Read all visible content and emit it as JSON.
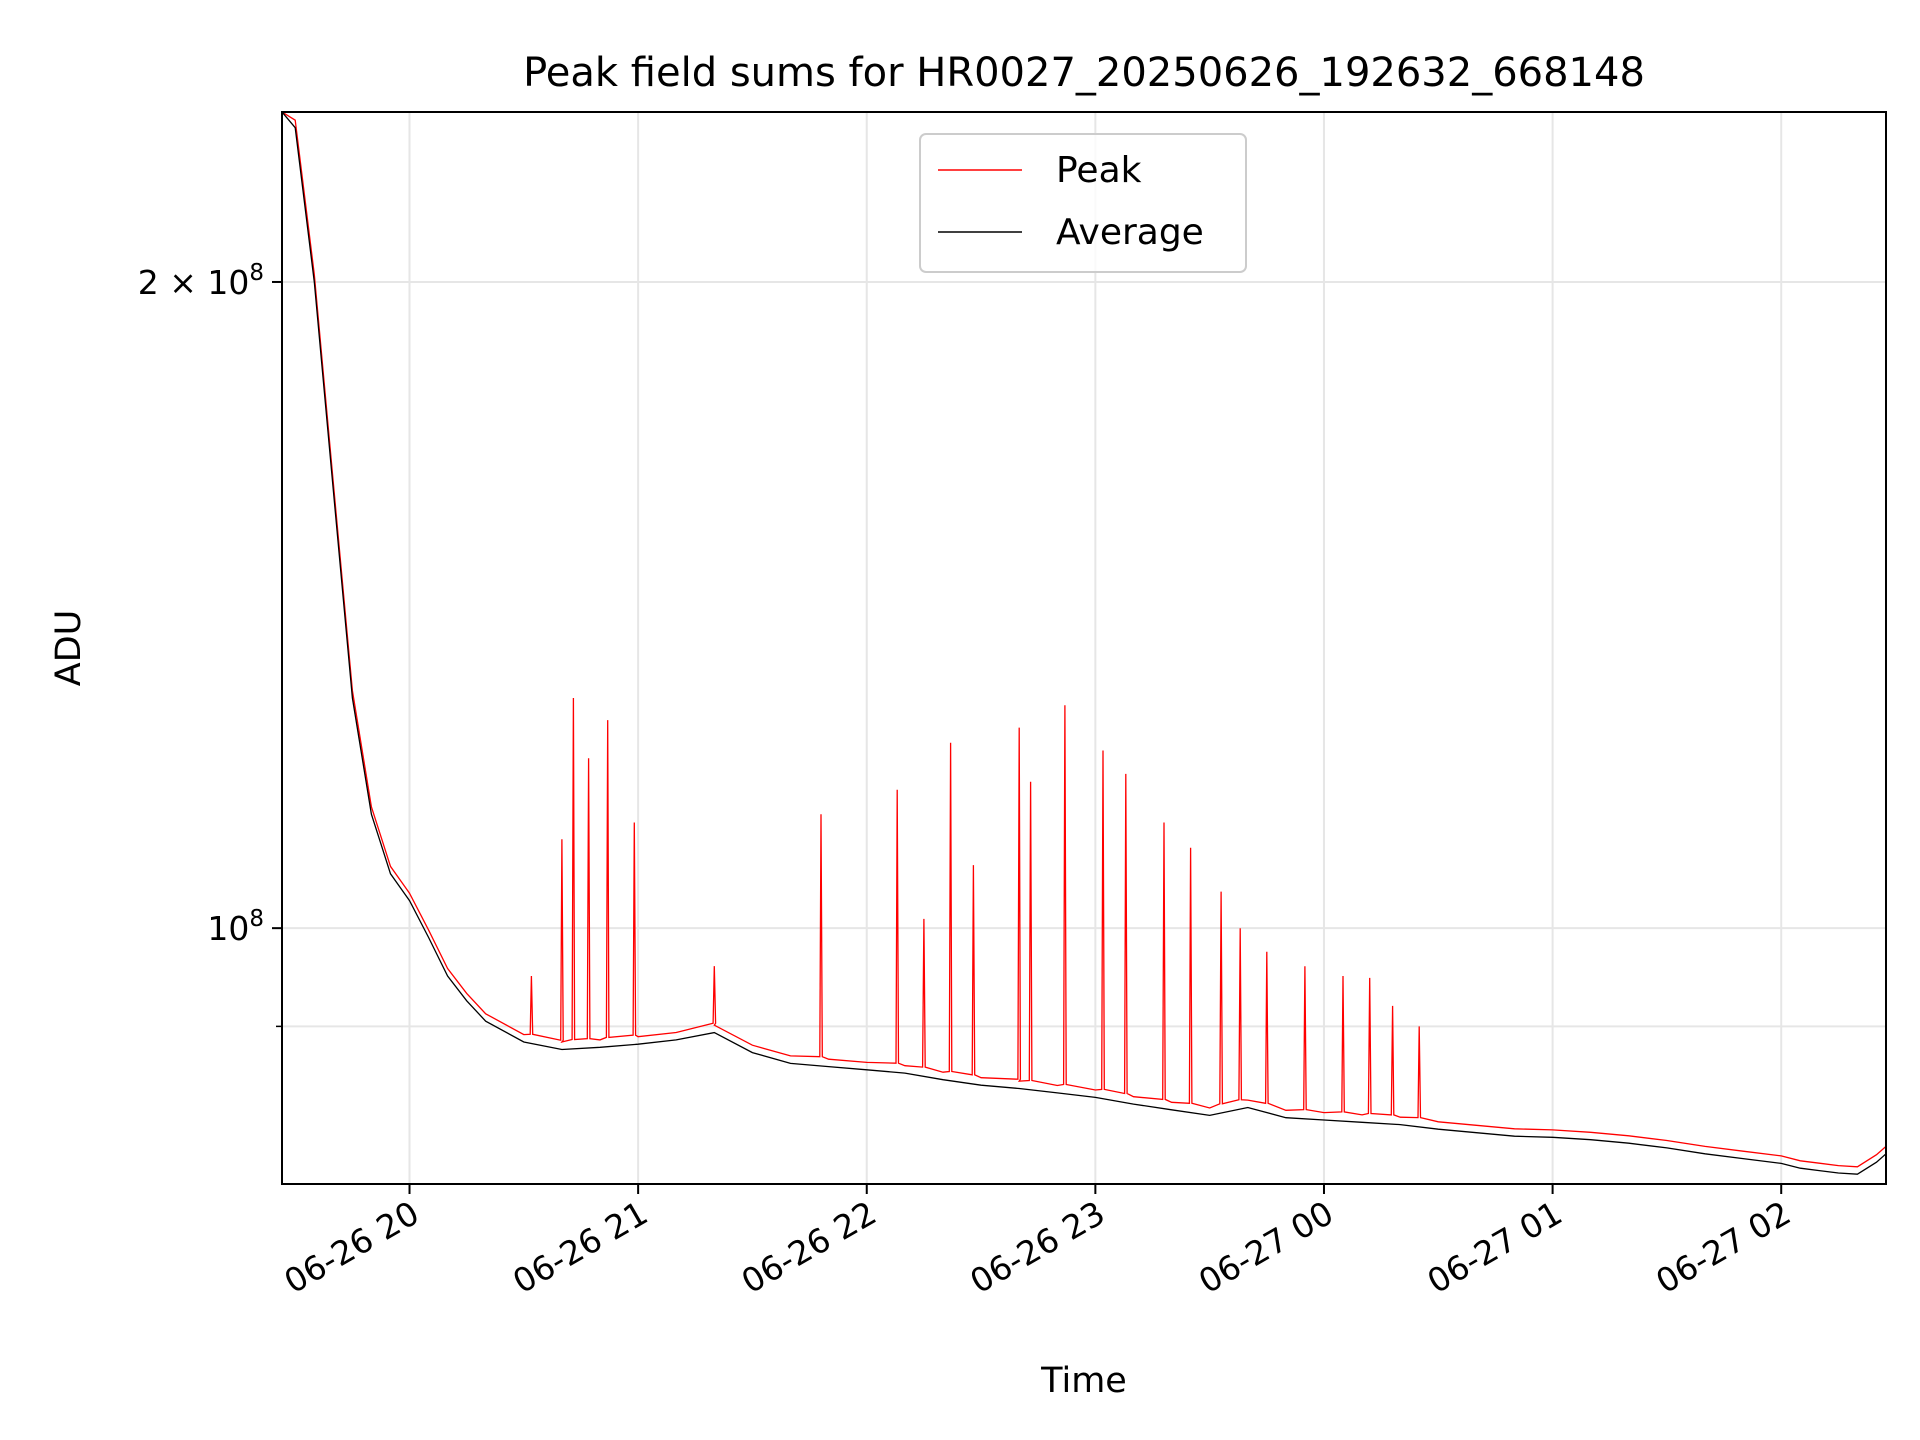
{
  "chart_data": {
    "type": "line",
    "title": "Peak field sums for HR0027_20250626_192632_668148",
    "xlabel": "Time",
    "ylabel": "ADU",
    "yscale": "log",
    "ylim": [
      76000000,
      240000000
    ],
    "xlim": [
      "2025-06-26 19:26:32",
      "2025-06-27 02:27:30"
    ],
    "x_ticks": [
      {
        "time": "2025-06-26 20:00",
        "label": "06-26 20"
      },
      {
        "time": "2025-06-26 21:00",
        "label": "06-26 21"
      },
      {
        "time": "2025-06-26 22:00",
        "label": "06-26 22"
      },
      {
        "time": "2025-06-26 23:00",
        "label": "06-26 23"
      },
      {
        "time": "2025-06-27 00:00",
        "label": "06-27 00"
      },
      {
        "time": "2025-06-27 01:00",
        "label": "06-27 01"
      },
      {
        "time": "2025-06-27 02:00",
        "label": "06-27 02"
      }
    ],
    "y_ticks": [
      {
        "value": 200000000,
        "base": "2 × 10",
        "exp": "8"
      },
      {
        "value": 100000000,
        "base": "10",
        "exp": "8"
      }
    ],
    "y_minor_gridlines": [
      90000000
    ],
    "grid": true,
    "legend": {
      "position": "top-center",
      "entries": [
        "Peak",
        "Average"
      ]
    },
    "series": [
      {
        "name": "Average",
        "color": "#000000",
        "points": [
          [
            "2025-06-26 19:26:32",
            240000000
          ],
          [
            "2025-06-26 19:30",
            236000000
          ],
          [
            "2025-06-26 19:35",
            200000000
          ],
          [
            "2025-06-26 19:40",
            160000000
          ],
          [
            "2025-06-26 19:45",
            128000000
          ],
          [
            "2025-06-26 19:50",
            113000000
          ],
          [
            "2025-06-26 19:55",
            106000000
          ],
          [
            "2025-06-26 20:00",
            103000000
          ],
          [
            "2025-06-26 20:05",
            99000000
          ],
          [
            "2025-06-26 20:10",
            95000000
          ],
          [
            "2025-06-26 20:15",
            92500000
          ],
          [
            "2025-06-26 20:20",
            90500000
          ],
          [
            "2025-06-26 20:30",
            88500000
          ],
          [
            "2025-06-26 20:40",
            87800000
          ],
          [
            "2025-06-26 20:50",
            88000000
          ],
          [
            "2025-06-26 21:00",
            88300000
          ],
          [
            "2025-06-26 21:10",
            88700000
          ],
          [
            "2025-06-26 21:20",
            89400000
          ],
          [
            "2025-06-26 21:30",
            87500000
          ],
          [
            "2025-06-26 21:40",
            86500000
          ],
          [
            "2025-06-26 21:50",
            86200000
          ],
          [
            "2025-06-26 22:00",
            85900000
          ],
          [
            "2025-06-26 22:10",
            85600000
          ],
          [
            "2025-06-26 22:20",
            85000000
          ],
          [
            "2025-06-26 22:30",
            84500000
          ],
          [
            "2025-06-26 22:40",
            84200000
          ],
          [
            "2025-06-26 22:50",
            83800000
          ],
          [
            "2025-06-26 23:00",
            83400000
          ],
          [
            "2025-06-26 23:10",
            82800000
          ],
          [
            "2025-06-26 23:20",
            82300000
          ],
          [
            "2025-06-26 23:30",
            81800000
          ],
          [
            "2025-06-26 23:40",
            82500000
          ],
          [
            "2025-06-26 23:50",
            81600000
          ],
          [
            "2025-06-27 00:00",
            81400000
          ],
          [
            "2025-06-27 00:10",
            81200000
          ],
          [
            "2025-06-27 00:20",
            81000000
          ],
          [
            "2025-06-27 00:30",
            80600000
          ],
          [
            "2025-06-27 00:40",
            80300000
          ],
          [
            "2025-06-27 00:50",
            80000000
          ],
          [
            "2025-06-27 01:00",
            79900000
          ],
          [
            "2025-06-27 01:10",
            79700000
          ],
          [
            "2025-06-27 01:20",
            79400000
          ],
          [
            "2025-06-27 01:30",
            79000000
          ],
          [
            "2025-06-27 01:40",
            78500000
          ],
          [
            "2025-06-27 01:50",
            78100000
          ],
          [
            "2025-06-27 02:00",
            77700000
          ],
          [
            "2025-06-27 02:05",
            77300000
          ],
          [
            "2025-06-27 02:10",
            77100000
          ],
          [
            "2025-06-27 02:15",
            76900000
          ],
          [
            "2025-06-27 02:20",
            76800000
          ],
          [
            "2025-06-27 02:25",
            77800000
          ],
          [
            "2025-06-27 02:27:30",
            78500000
          ]
        ]
      },
      {
        "name": "Peak",
        "color": "#ff0000",
        "spikes": [
          [
            "2025-06-26 20:32",
            95000000
          ],
          [
            "2025-06-26 20:40",
            110000000
          ],
          [
            "2025-06-26 20:43",
            128000000
          ],
          [
            "2025-06-26 20:47",
            120000000
          ],
          [
            "2025-06-26 20:52",
            125000000
          ],
          [
            "2025-06-26 20:59",
            112000000
          ],
          [
            "2025-06-26 21:20",
            96000000
          ],
          [
            "2025-06-26 21:48",
            113000000
          ],
          [
            "2025-06-26 22:08",
            116000000
          ],
          [
            "2025-06-26 22:15",
            101000000
          ],
          [
            "2025-06-26 22:22",
            122000000
          ],
          [
            "2025-06-26 22:28",
            107000000
          ],
          [
            "2025-06-26 22:40",
            124000000
          ],
          [
            "2025-06-26 22:43",
            117000000
          ],
          [
            "2025-06-26 22:52",
            127000000
          ],
          [
            "2025-06-26 23:02",
            121000000
          ],
          [
            "2025-06-26 23:08",
            118000000
          ],
          [
            "2025-06-26 23:18",
            112000000
          ],
          [
            "2025-06-26 23:25",
            109000000
          ],
          [
            "2025-06-26 23:33",
            104000000
          ],
          [
            "2025-06-26 23:38",
            100000000
          ],
          [
            "2025-06-26 23:45",
            97500000
          ],
          [
            "2025-06-26 23:55",
            96000000
          ],
          [
            "2025-06-27 00:05",
            95000000
          ],
          [
            "2025-06-27 00:12",
            94800000
          ],
          [
            "2025-06-27 00:18",
            92000000
          ],
          [
            "2025-06-27 00:25",
            90000000
          ]
        ]
      }
    ]
  }
}
